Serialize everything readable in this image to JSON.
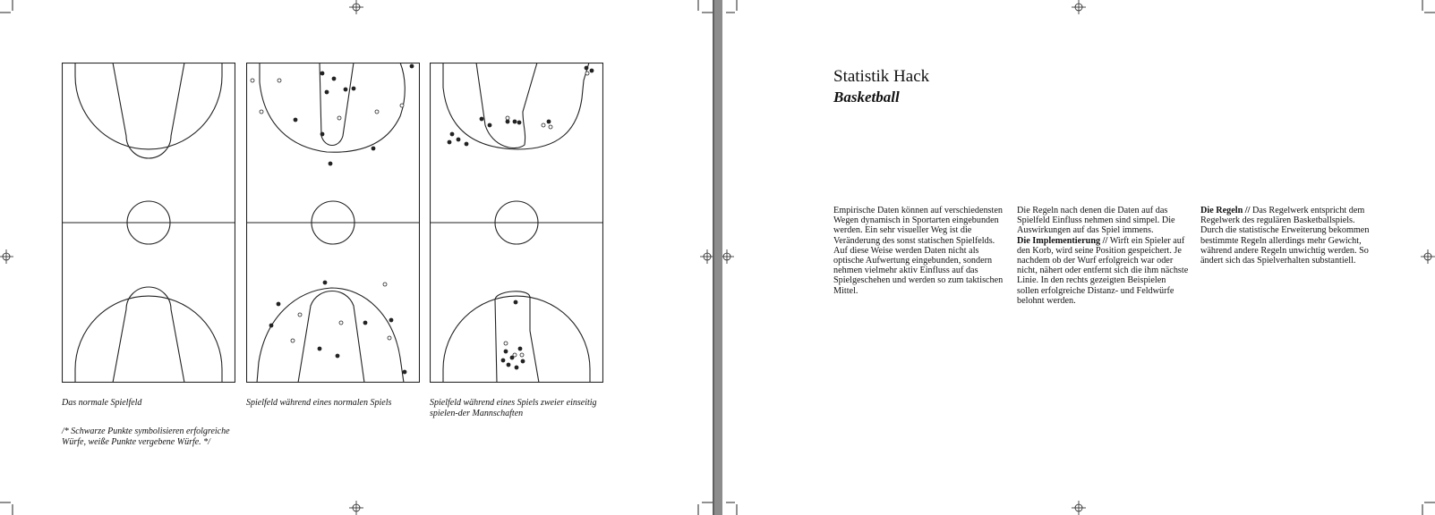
{
  "left_page": {
    "figures": [
      {
        "caption": "Das normale Spielfeld"
      },
      {
        "caption": "Spielfeld während eines normalen Spiels"
      },
      {
        "caption": "Spielfeld während eines Spiels zweier einseitig spielen-der Mannschaften"
      }
    ],
    "footnote": "/* Schwarze Punkte symbolisieren erfolgreiche Würfe, weiße Punkte vergebene Würfe. */"
  },
  "right_page": {
    "title": "Statistik Hack",
    "subtitle": "Basketball",
    "columns": [
      {
        "lead": "",
        "text": "Empirische Daten können auf verschiedensten Wegen dynamisch in Sportarten eingebunden werden. Ein sehr visueller Weg ist die Veränderung des sonst statischen Spielfelds. Auf diese Weise werden Daten nicht als optische Aufwertung eingebunden, sondern nehmen vielmehr aktiv Einfluss auf das Spielgeschehen und werden so zum taktischen Mittel."
      },
      {
        "intro": "Die Regeln nach denen die Daten auf das Spielfeld Einfluss nehmen sind simpel. Die Auswirkungen auf das Spiel immens.",
        "lead": "Die Implementierung //",
        "text": "Wirft ein Spieler auf den Korb, wird seine Position gespeichert. Je nachdem ob der Wurf erfolgreich war oder nicht, nähert oder entfernt sich die ihm nächste Linie. In den rechts gezeigten Beispielen sollen erfolgreiche Distanz- und Feldwürfe belohnt werden."
      },
      {
        "lead": "Die Regeln //",
        "text": "Das Regelwerk entspricht dem Regelwerk des regulären Basketballspiels. Durch die statistische Erweiterung bekommen bestimmte Regeln allerdings mehr Gewicht, während andere Regeln unwichtig werden. So ändert sich das Spielverhalten substantiell."
      }
    ]
  }
}
